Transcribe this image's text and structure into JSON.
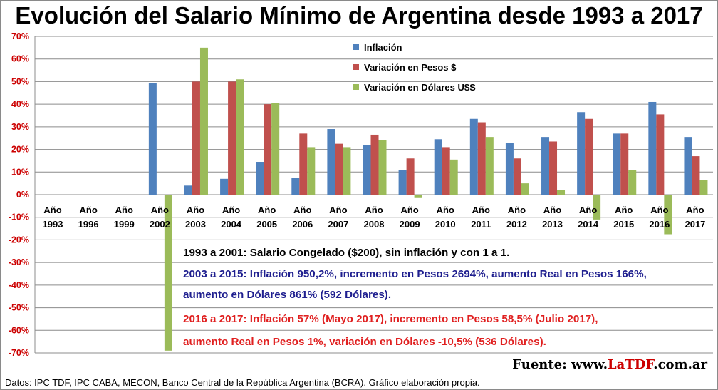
{
  "title": "Evolución del Salario Mínimo de Argentina desde 1993 a 2017",
  "chart_data": {
    "type": "bar",
    "categories": [
      [
        "Año",
        "1993"
      ],
      [
        "Año",
        "1996"
      ],
      [
        "Año",
        "1999"
      ],
      [
        "Año",
        "2002"
      ],
      [
        "Año",
        "2003"
      ],
      [
        "Año",
        "2004"
      ],
      [
        "Año",
        "2005"
      ],
      [
        "Año",
        "2006"
      ],
      [
        "Año",
        "2007"
      ],
      [
        "Año",
        "2008"
      ],
      [
        "Año",
        "2009"
      ],
      [
        "Año",
        "2010"
      ],
      [
        "Año",
        "2011"
      ],
      [
        "Año",
        "2012"
      ],
      [
        "Año",
        "2013"
      ],
      [
        "Año",
        "2014"
      ],
      [
        "Año",
        "2015"
      ],
      [
        "Año",
        "2016"
      ],
      [
        "Año",
        "2017"
      ]
    ],
    "series": [
      {
        "name": "Inflación",
        "color": "#4f81bd",
        "values": [
          0,
          0,
          0,
          49.5,
          4,
          7,
          14.5,
          7.5,
          29,
          22,
          11,
          24.5,
          33.5,
          23,
          25.5,
          36.5,
          27,
          41,
          25.5
        ]
      },
      {
        "name": "Variación en Pesos $",
        "color": "#c0504d",
        "values": [
          0,
          0,
          0,
          0,
          50,
          50,
          40,
          27,
          22.5,
          26.5,
          16,
          21,
          32,
          16,
          23.5,
          33.5,
          27,
          35.5,
          17
        ]
      },
      {
        "name": "Variación en Dólares U$S",
        "color": "#9bbb59",
        "values": [
          0,
          0,
          0,
          -69,
          65,
          51,
          40.5,
          21,
          21,
          24,
          -1.5,
          15.5,
          25.5,
          5,
          2,
          -11,
          11,
          -17.5,
          6.5
        ]
      }
    ],
    "ylim": [
      -70,
      70
    ],
    "yticks": [
      "70%",
      "60%",
      "50%",
      "40%",
      "30%",
      "20%",
      "10%",
      "0%",
      "-10%",
      "-20%",
      "-30%",
      "-40%",
      "-50%",
      "-60%",
      "-70%"
    ],
    "grid": true,
    "legend_position": "top-center"
  },
  "notes": [
    {
      "text": "1993 a 2001: Salario Congelado ($200), sin inflación y con 1 a 1.",
      "color": "#000000"
    },
    {
      "text": "2003 a 2015: Inflación 950,2%, incremento en Pesos 2694%, aumento Real en Pesos 166%,",
      "color": "#1f1f8f"
    },
    {
      "text": "aumento en Dólares 861% (592 Dólares).",
      "color": "#1f1f8f"
    },
    {
      "text": "2016 a 2017: Inflación 57% (Mayo 2017), incremento en Pesos 58,5% (Julio 2017),",
      "color": "#e02020"
    },
    {
      "text": "aumento Real en Pesos 1%, variación en Dólares -10,5% (536 Dólares).",
      "color": "#e02020"
    }
  ],
  "source": {
    "prefix": "Fuente: www.",
    "brand": "LaTDF",
    "suffix": ".com.ar"
  },
  "footer": "Datos: IPC TDF, IPC CABA, MECON, Banco Central de la República Argentina (BCRA). Gráfico elaboración propia."
}
